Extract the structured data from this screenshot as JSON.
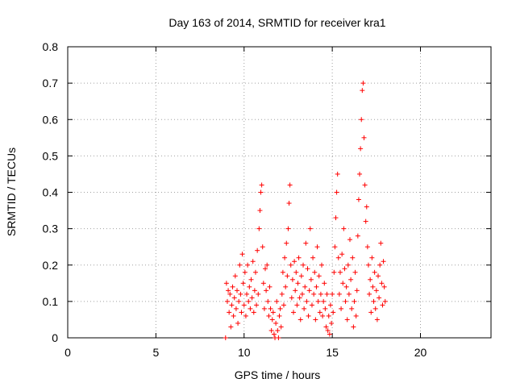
{
  "chart_data": {
    "type": "scatter",
    "title": "Day 163 of 2014, SRMTID for receiver kra1",
    "xlabel": "GPS time / hours",
    "ylabel": "SRMTID / TECUs",
    "xlim": [
      0,
      24
    ],
    "ylim": [
      0,
      0.8
    ],
    "xticks": [
      0,
      5,
      10,
      15,
      20
    ],
    "xtick_labels": [
      "0",
      "5",
      "10",
      "15",
      "20"
    ],
    "yticks": [
      0,
      0.1,
      0.2,
      0.3,
      0.4,
      0.5,
      0.6,
      0.7,
      0.8
    ],
    "ytick_labels": [
      "0",
      "0.1",
      "0.2",
      "0.3",
      "0.4",
      "0.5",
      "0.6",
      "0.7",
      "0.8"
    ],
    "grid": true,
    "marker": "+",
    "series_color": "#ff0000",
    "series": [
      {
        "name": "kra1",
        "points": [
          [
            8.95,
            0.0
          ],
          [
            9.0,
            0.15
          ],
          [
            9.05,
            0.1
          ],
          [
            9.1,
            0.13
          ],
          [
            9.15,
            0.07
          ],
          [
            9.2,
            0.12
          ],
          [
            9.25,
            0.03
          ],
          [
            9.3,
            0.09
          ],
          [
            9.35,
            0.14
          ],
          [
            9.4,
            0.06
          ],
          [
            9.45,
            0.11
          ],
          [
            9.5,
            0.17
          ],
          [
            9.55,
            0.08
          ],
          [
            9.6,
            0.13
          ],
          [
            9.65,
            0.04
          ],
          [
            9.7,
            0.1
          ],
          [
            9.75,
            0.2
          ],
          [
            9.8,
            0.12
          ],
          [
            9.85,
            0.07
          ],
          [
            9.9,
            0.23
          ],
          [
            9.95,
            0.15
          ],
          [
            10.0,
            0.09
          ],
          [
            10.05,
            0.18
          ],
          [
            10.1,
            0.06
          ],
          [
            10.15,
            0.12
          ],
          [
            10.2,
            0.2
          ],
          [
            10.25,
            0.1
          ],
          [
            10.3,
            0.14
          ],
          [
            10.35,
            0.08
          ],
          [
            10.4,
            0.16
          ],
          [
            10.45,
            0.11
          ],
          [
            10.5,
            0.21
          ],
          [
            10.55,
            0.07
          ],
          [
            10.6,
            0.13
          ],
          [
            10.65,
            0.18
          ],
          [
            10.7,
            0.09
          ],
          [
            10.75,
            0.24
          ],
          [
            10.8,
            0.12
          ],
          [
            10.85,
            0.3
          ],
          [
            10.9,
            0.35
          ],
          [
            10.95,
            0.4
          ],
          [
            11.0,
            0.42
          ],
          [
            11.05,
            0.25
          ],
          [
            11.1,
            0.15
          ],
          [
            11.15,
            0.08
          ],
          [
            11.2,
            0.19
          ],
          [
            11.25,
            0.13
          ],
          [
            11.3,
            0.2
          ],
          [
            11.35,
            0.1
          ],
          [
            11.4,
            0.06
          ],
          [
            11.45,
            0.14
          ],
          [
            11.5,
            0.08
          ],
          [
            11.55,
            0.02
          ],
          [
            11.6,
            0.05
          ],
          [
            11.65,
            0.07
          ],
          [
            11.7,
            0.01
          ],
          [
            11.75,
            0.0
          ],
          [
            11.8,
            0.04
          ],
          [
            11.85,
            0.1
          ],
          [
            11.9,
            0.02
          ],
          [
            11.95,
            0.0
          ],
          [
            12.0,
            0.06
          ],
          [
            12.05,
            0.08
          ],
          [
            12.1,
            0.03
          ],
          [
            12.15,
            0.12
          ],
          [
            12.2,
            0.18
          ],
          [
            12.25,
            0.09
          ],
          [
            12.3,
            0.22
          ],
          [
            12.35,
            0.14
          ],
          [
            12.4,
            0.26
          ],
          [
            12.45,
            0.17
          ],
          [
            12.5,
            0.3
          ],
          [
            12.55,
            0.37
          ],
          [
            12.6,
            0.42
          ],
          [
            12.65,
            0.2
          ],
          [
            12.7,
            0.11
          ],
          [
            12.75,
            0.16
          ],
          [
            12.8,
            0.07
          ],
          [
            12.85,
            0.21
          ],
          [
            12.9,
            0.13
          ],
          [
            12.95,
            0.18
          ],
          [
            13.0,
            0.09
          ],
          [
            13.05,
            0.15
          ],
          [
            13.1,
            0.22
          ],
          [
            13.15,
            0.11
          ],
          [
            13.2,
            0.05
          ],
          [
            13.25,
            0.17
          ],
          [
            13.3,
            0.12
          ],
          [
            13.35,
            0.2
          ],
          [
            13.4,
            0.08
          ],
          [
            13.45,
            0.14
          ],
          [
            13.5,
            0.26
          ],
          [
            13.55,
            0.1
          ],
          [
            13.6,
            0.19
          ],
          [
            13.65,
            0.06
          ],
          [
            13.7,
            0.13
          ],
          [
            13.75,
            0.3
          ],
          [
            13.8,
            0.16
          ],
          [
            13.85,
            0.09
          ],
          [
            13.9,
            0.22
          ],
          [
            13.95,
            0.12
          ],
          [
            14.0,
            0.18
          ],
          [
            14.05,
            0.05
          ],
          [
            14.1,
            0.14
          ],
          [
            14.15,
            0.25
          ],
          [
            14.2,
            0.1
          ],
          [
            14.25,
            0.17
          ],
          [
            14.3,
            0.07
          ],
          [
            14.35,
            0.12
          ],
          [
            14.4,
            0.2
          ],
          [
            14.45,
            0.06
          ],
          [
            14.5,
            0.1
          ],
          [
            14.55,
            0.15
          ],
          [
            14.6,
            0.08
          ],
          [
            14.65,
            0.03
          ],
          [
            14.7,
            0.12
          ],
          [
            14.75,
            0.02
          ],
          [
            14.8,
            0.06
          ],
          [
            14.85,
            0.01
          ],
          [
            14.9,
            0.09
          ],
          [
            14.95,
            0.04
          ],
          [
            15.0,
            0.12
          ],
          [
            15.05,
            0.07
          ],
          [
            15.1,
            0.18
          ],
          [
            15.15,
            0.25
          ],
          [
            15.2,
            0.33
          ],
          [
            15.25,
            0.4
          ],
          [
            15.3,
            0.45
          ],
          [
            15.35,
            0.22
          ],
          [
            15.4,
            0.12
          ],
          [
            15.45,
            0.18
          ],
          [
            15.5,
            0.08
          ],
          [
            15.55,
            0.23
          ],
          [
            15.6,
            0.15
          ],
          [
            15.65,
            0.3
          ],
          [
            15.7,
            0.19
          ],
          [
            15.75,
            0.1
          ],
          [
            15.8,
            0.14
          ],
          [
            15.85,
            0.05
          ],
          [
            15.9,
            0.2
          ],
          [
            15.95,
            0.12
          ],
          [
            16.0,
            0.27
          ],
          [
            16.05,
            0.16
          ],
          [
            16.1,
            0.08
          ],
          [
            16.15,
            0.22
          ],
          [
            16.2,
            0.03
          ],
          [
            16.25,
            0.1
          ],
          [
            16.3,
            0.18
          ],
          [
            16.35,
            0.06
          ],
          [
            16.4,
            0.13
          ],
          [
            16.45,
            0.28
          ],
          [
            16.5,
            0.38
          ],
          [
            16.55,
            0.45
          ],
          [
            16.6,
            0.52
          ],
          [
            16.65,
            0.6
          ],
          [
            16.7,
            0.68
          ],
          [
            16.75,
            0.7
          ],
          [
            16.8,
            0.55
          ],
          [
            16.85,
            0.42
          ],
          [
            16.9,
            0.32
          ],
          [
            16.95,
            0.36
          ],
          [
            17.0,
            0.25
          ],
          [
            17.05,
            0.2
          ],
          [
            17.1,
            0.12
          ],
          [
            17.15,
            0.16
          ],
          [
            17.2,
            0.07
          ],
          [
            17.25,
            0.22
          ],
          [
            17.3,
            0.14
          ],
          [
            17.35,
            0.1
          ],
          [
            17.4,
            0.18
          ],
          [
            17.45,
            0.08
          ],
          [
            17.5,
            0.13
          ],
          [
            17.55,
            0.05
          ],
          [
            17.6,
            0.17
          ],
          [
            17.65,
            0.11
          ],
          [
            17.7,
            0.2
          ],
          [
            17.75,
            0.26
          ],
          [
            17.8,
            0.15
          ],
          [
            17.85,
            0.09
          ],
          [
            17.9,
            0.21
          ],
          [
            17.95,
            0.14
          ],
          [
            18.0,
            0.1
          ]
        ]
      }
    ]
  }
}
